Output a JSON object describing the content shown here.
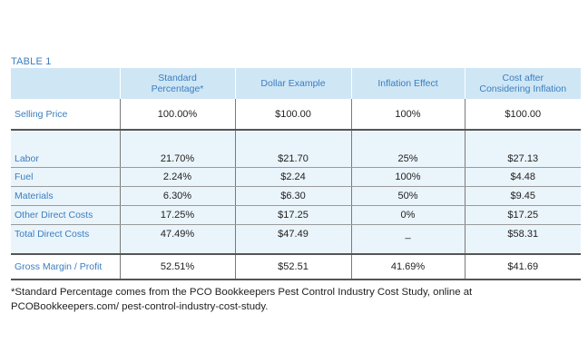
{
  "caption": "TABLE 1",
  "headers": [
    "",
    "Standard\nPercentage*",
    "Dollar Example",
    "Inflation Effect",
    "Cost after\nConsidering Inflation"
  ],
  "rows": {
    "selling_price": [
      "Selling Price",
      "100.00%",
      "$100.00",
      "100%",
      "$100.00"
    ],
    "labor": [
      "Labor",
      "21.70%",
      "$21.70",
      "25%",
      "$27.13"
    ],
    "fuel": [
      "Fuel",
      "2.24%",
      "$2.24",
      "100%",
      "$4.48"
    ],
    "materials": [
      "Materials",
      "6.30%",
      "$6.30",
      "50%",
      "$9.45"
    ],
    "other_direct": [
      "Other Direct Costs",
      "17.25%",
      "$17.25",
      "0%",
      "$17.25"
    ],
    "total_direct": [
      "Total Direct Costs",
      "47.49%",
      "$47.49",
      "_",
      "$58.31"
    ],
    "gross_margin": [
      "Gross Margin / Profit",
      "52.51%",
      "$52.51",
      "41.69%",
      "$41.69"
    ]
  },
  "footnote": "*Standard Percentage comes from the PCO Bookkeepers Pest Control Industry Cost Study, online at PCOBookkeepers.com/ pest-control-industry-cost-study."
}
